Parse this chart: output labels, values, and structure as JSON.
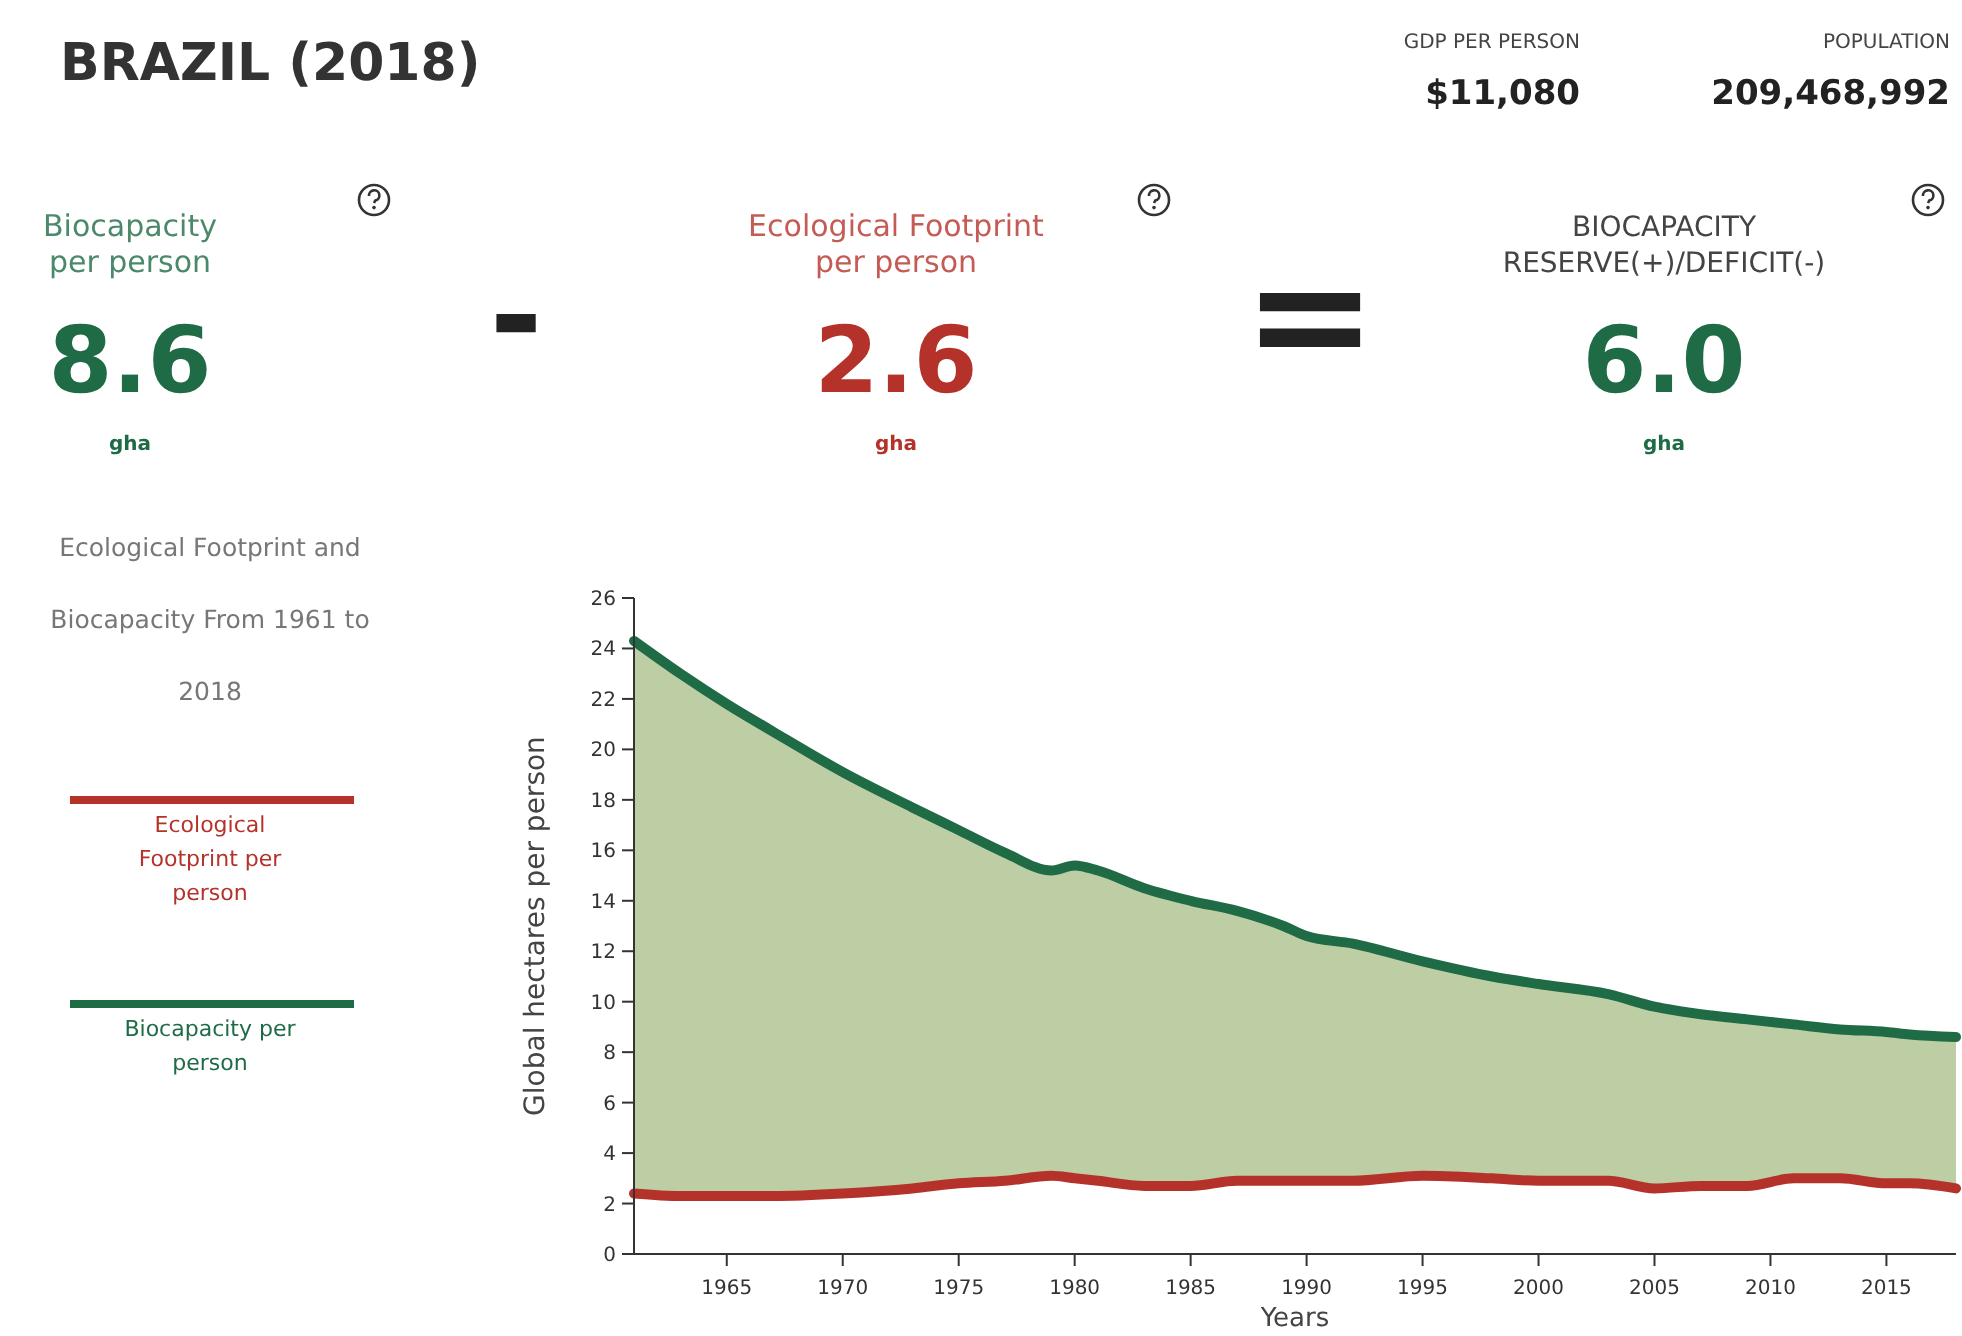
{
  "chart_data": {
    "type": "line",
    "title": "BRAZIL (2018)",
    "legend_title": "Ecological Footprint and Biocapacity From 1961 to 2018",
    "xlabel": "Years",
    "ylabel": "Global hectares per person",
    "annotations": [
      "GDP PER PERSON",
      "$11,080",
      "POPULATION",
      "209,468,992",
      "Biocapacity per person",
      "8.6",
      "gha",
      "-",
      "Ecological Footprint per person",
      "2.6",
      "gha",
      "=",
      "BIOCAPACITY RESERVE(+)/DEFICIT(-)",
      "6.0",
      "gha"
    ],
    "x": [
      1961,
      1963,
      1965,
      1967,
      1970,
      1973,
      1975,
      1977,
      1979,
      1980,
      1981,
      1983,
      1985,
      1987,
      1989,
      1990,
      1992,
      1995,
      1998,
      2000,
      2003,
      2005,
      2007,
      2009,
      2011,
      2013,
      2015,
      2016,
      2018
    ],
    "series": [
      {
        "name": "Ecological Footprint per person",
        "type": "line",
        "color": "#b5322a",
        "values": [
          2.4,
          2.3,
          2.3,
          2.3,
          2.4,
          2.6,
          2.8,
          2.9,
          3.1,
          3.0,
          2.9,
          2.7,
          2.7,
          2.9,
          2.9,
          2.9,
          2.9,
          3.1,
          3.0,
          2.9,
          2.9,
          2.6,
          2.7,
          2.7,
          3.0,
          3.0,
          2.8,
          2.8,
          2.6
        ]
      },
      {
        "name": "Biocapacity per person",
        "type": "area",
        "color": "#1e6b45",
        "values": [
          24.3,
          23.0,
          21.8,
          20.7,
          19.1,
          17.7,
          16.8,
          15.9,
          15.2,
          15.4,
          15.2,
          14.5,
          14.0,
          13.6,
          13.0,
          12.6,
          12.3,
          11.6,
          11.0,
          10.7,
          10.3,
          9.8,
          9.5,
          9.3,
          9.1,
          8.9,
          8.8,
          8.7,
          8.6
        ]
      }
    ],
    "xlim": [
      1961,
      2018
    ],
    "xticks": [
      1965,
      1970,
      1975,
      1980,
      1985,
      1990,
      1995,
      2000,
      2005,
      2010,
      2015
    ],
    "ylim": [
      0,
      26
    ],
    "yticks": [
      0,
      2,
      4,
      6,
      8,
      10,
      12,
      14,
      16,
      18,
      20,
      22,
      24,
      26
    ],
    "legend": "left",
    "grid": false
  }
}
